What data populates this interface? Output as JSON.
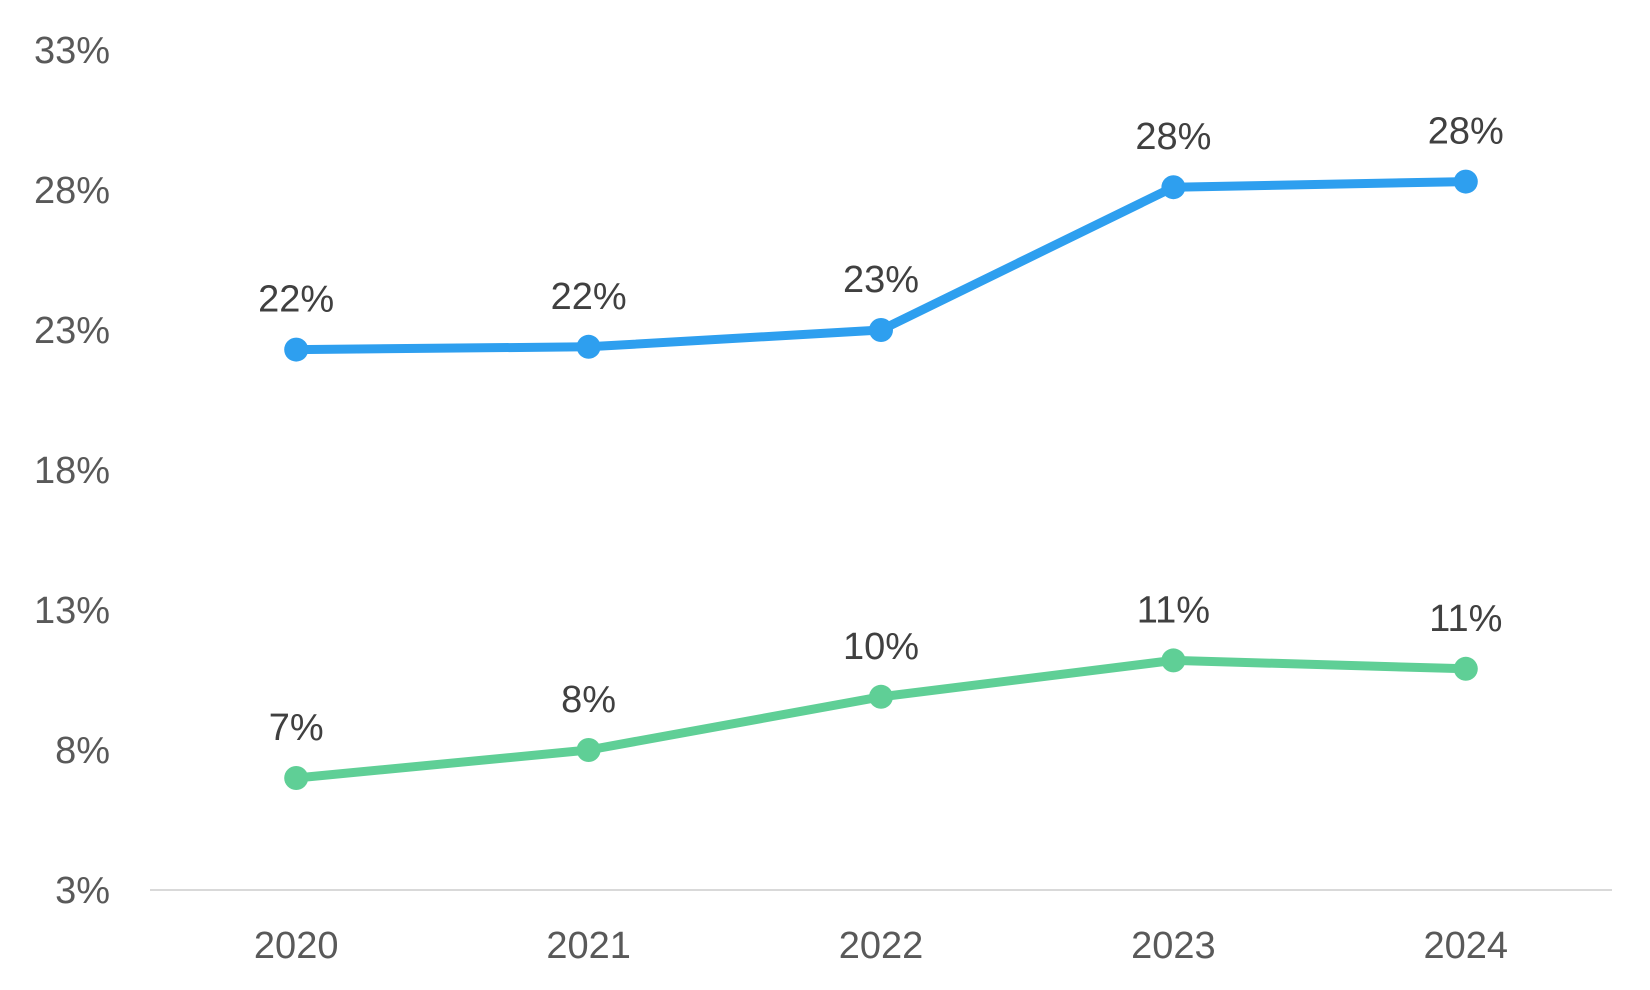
{
  "chart_data": {
    "type": "line",
    "categories": [
      "2020",
      "2021",
      "2022",
      "2023",
      "2024"
    ],
    "ylim": [
      3,
      33
    ],
    "yticks": [
      3,
      8,
      13,
      18,
      23,
      28,
      33
    ],
    "ytick_labels": [
      "3%",
      "8%",
      "13%",
      "18%",
      "23%",
      "28%",
      "33%"
    ],
    "grid": false,
    "title": "",
    "xlabel": "",
    "ylabel": "",
    "series": [
      {
        "color": "#2E9FEF",
        "values": [
          22.3,
          22.4,
          23.0,
          28.1,
          28.3
        ],
        "labels": [
          "22%",
          "22%",
          "23%",
          "28%",
          "28%"
        ]
      },
      {
        "color": "#5FCF96",
        "values": [
          7.0,
          8.0,
          9.9,
          11.2,
          10.9
        ],
        "labels": [
          "7%",
          "8%",
          "10%",
          "11%",
          "11%"
        ]
      }
    ],
    "axis_color": "#D9D9D9"
  }
}
